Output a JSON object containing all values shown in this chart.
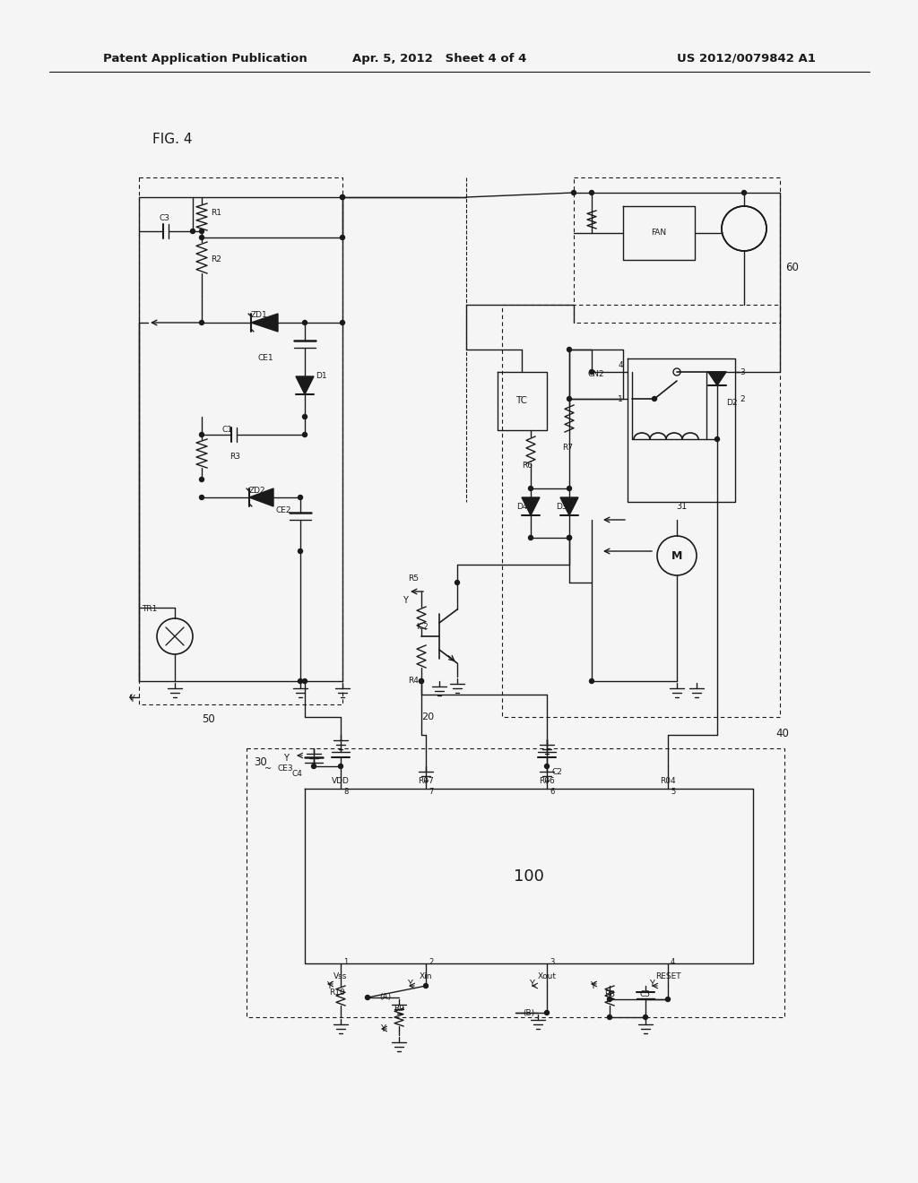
{
  "title_left": "Patent Application Publication",
  "title_mid": "Apr. 5, 2012   Sheet 4 of 4",
  "title_right": "US 2012/0079842 A1",
  "fig_label": "FIG. 4",
  "bg_color": "#f5f5f5",
  "line_color": "#1a1a1a",
  "text_color": "#1a1a1a"
}
